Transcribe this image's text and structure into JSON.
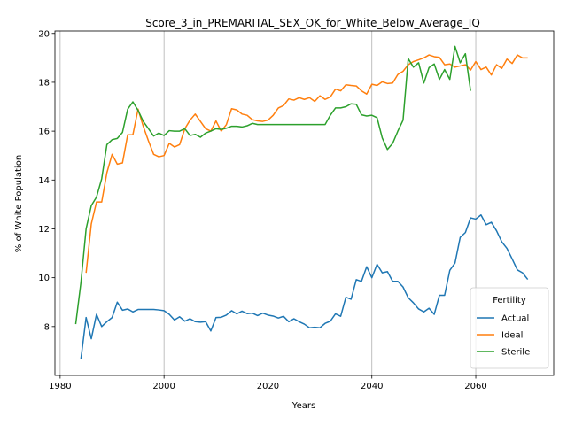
{
  "chart_data": {
    "type": "line",
    "title": "Score_3_in_PREMARITAL_SEX_OK_for_White_Below_Average_IQ",
    "xlabel": "Years",
    "ylabel": "% of White Population",
    "xlim": [
      1979,
      2075
    ],
    "ylim": [
      6.0,
      20.1
    ],
    "xticks": [
      1980,
      2000,
      2020,
      2040,
      2060
    ],
    "yticks": [
      8,
      10,
      12,
      14,
      16,
      18,
      20
    ],
    "grid": "vertical",
    "legend": {
      "title": "Fertility",
      "position": "lower-right"
    },
    "series": [
      {
        "name": "Actual",
        "color": "#1f77b4",
        "x": [
          1984,
          1985,
          1986,
          1987,
          1988,
          1989,
          1990,
          1991,
          1992,
          1993,
          1994,
          1995,
          1996,
          1997,
          1998,
          1999,
          2000,
          2001,
          2002,
          2003,
          2004,
          2005,
          2006,
          2007,
          2008,
          2009,
          2010,
          2011,
          2012,
          2013,
          2014,
          2015,
          2016,
          2017,
          2018,
          2019,
          2020,
          2021,
          2022,
          2023,
          2024,
          2025,
          2026,
          2027,
          2028,
          2029,
          2030,
          2031,
          2032,
          2033,
          2034,
          2035,
          2036,
          2037,
          2038,
          2039,
          2040,
          2041,
          2042,
          2043,
          2044,
          2045,
          2046,
          2047,
          2048,
          2049,
          2050,
          2051,
          2052,
          2053,
          2054,
          2055,
          2056,
          2057,
          2058,
          2059,
          2060,
          2061,
          2062,
          2063,
          2064,
          2065,
          2066,
          2067,
          2068,
          2069,
          2070
        ],
        "y": [
          6.67,
          8.37,
          7.5,
          8.5,
          8.0,
          8.2,
          8.37,
          9.0,
          8.67,
          8.72,
          8.6,
          8.7,
          8.7,
          8.7,
          8.7,
          8.68,
          8.65,
          8.5,
          8.27,
          8.4,
          8.22,
          8.32,
          8.2,
          8.18,
          8.2,
          7.82,
          8.37,
          8.38,
          8.47,
          8.65,
          8.52,
          8.63,
          8.53,
          8.55,
          8.45,
          8.55,
          8.47,
          8.43,
          8.35,
          8.42,
          8.2,
          8.32,
          8.2,
          8.1,
          7.95,
          7.97,
          7.95,
          8.13,
          8.22,
          8.52,
          8.42,
          9.2,
          9.12,
          9.92,
          9.85,
          10.45,
          10.0,
          10.55,
          10.2,
          10.25,
          9.85,
          9.85,
          9.62,
          9.18,
          8.97,
          8.72,
          8.6,
          8.75,
          8.5,
          9.28,
          9.28,
          10.3,
          10.6,
          11.65,
          11.85,
          12.45,
          12.4,
          12.57,
          12.17,
          12.27,
          11.92,
          11.47,
          11.2,
          10.77,
          10.32,
          10.2,
          9.93
        ]
      },
      {
        "name": "Ideal",
        "color": "#ff7f0e",
        "x": [
          1985,
          1986,
          1987,
          1988,
          1989,
          1990,
          1991,
          1992,
          1993,
          1994,
          1995,
          1996,
          1997,
          1998,
          1999,
          2000,
          2001,
          2002,
          2003,
          2004,
          2005,
          2006,
          2007,
          2008,
          2009,
          2010,
          2011,
          2012,
          2013,
          2014,
          2015,
          2016,
          2017,
          2018,
          2019,
          2020,
          2021,
          2022,
          2023,
          2024,
          2025,
          2026,
          2027,
          2028,
          2029,
          2030,
          2031,
          2032,
          2033,
          2034,
          2035,
          2036,
          2037,
          2038,
          2039,
          2040,
          2041,
          2042,
          2043,
          2044,
          2045,
          2046,
          2047,
          2048,
          2049,
          2050,
          2051,
          2052,
          2053,
          2054,
          2055,
          2056,
          2057,
          2058,
          2059,
          2060,
          2061,
          2062,
          2063,
          2064,
          2065,
          2066,
          2067,
          2068,
          2069,
          2070
        ],
        "y": [
          10.2,
          12.2,
          13.1,
          13.1,
          14.3,
          15.05,
          14.65,
          14.7,
          15.85,
          15.85,
          16.9,
          16.2,
          15.6,
          15.05,
          14.95,
          15.0,
          15.5,
          15.35,
          15.45,
          16.1,
          16.45,
          16.7,
          16.4,
          16.1,
          16.0,
          16.42,
          16.0,
          16.27,
          16.92,
          16.87,
          16.7,
          16.65,
          16.47,
          16.42,
          16.4,
          16.45,
          16.65,
          16.95,
          17.05,
          17.32,
          17.27,
          17.37,
          17.3,
          17.37,
          17.22,
          17.45,
          17.3,
          17.4,
          17.72,
          17.65,
          17.9,
          17.87,
          17.85,
          17.65,
          17.52,
          17.92,
          17.87,
          18.02,
          17.95,
          17.97,
          18.32,
          18.45,
          18.72,
          18.85,
          18.92,
          19.0,
          19.12,
          19.05,
          19.02,
          18.72,
          18.75,
          18.62,
          18.67,
          18.72,
          18.5,
          18.85,
          18.52,
          18.62,
          18.3,
          18.72,
          18.57,
          18.95,
          18.77,
          19.12,
          19.0,
          19.0
        ]
      },
      {
        "name": "Sterile",
        "color": "#2ca02c",
        "x": [
          1983,
          1984,
          1985,
          1986,
          1987,
          1988,
          1989,
          1990,
          1991,
          1992,
          1993,
          1994,
          1995,
          1996,
          1997,
          1998,
          1999,
          2000,
          2001,
          2002,
          2003,
          2004,
          2005,
          2006,
          2007,
          2008,
          2009,
          2010,
          2011,
          2012,
          2013,
          2014,
          2015,
          2016,
          2017,
          2018,
          2019,
          2020,
          2021,
          2022,
          2023,
          2024,
          2025,
          2026,
          2027,
          2028,
          2029,
          2030,
          2031,
          2032,
          2033,
          2034,
          2035,
          2036,
          2037,
          2038,
          2039,
          2040,
          2041,
          2042,
          2043,
          2044,
          2045,
          2046,
          2047,
          2048,
          2049,
          2050,
          2051,
          2052,
          2053,
          2054,
          2055,
          2056,
          2057,
          2058,
          2059
        ],
        "y": [
          8.1,
          9.8,
          12.0,
          12.95,
          13.3,
          14.05,
          15.45,
          15.65,
          15.7,
          15.95,
          16.9,
          17.2,
          16.85,
          16.4,
          16.1,
          15.8,
          15.92,
          15.82,
          16.02,
          16.0,
          16.0,
          16.1,
          15.82,
          15.87,
          15.75,
          15.92,
          16.0,
          16.1,
          16.07,
          16.12,
          16.2,
          16.2,
          16.17,
          16.22,
          16.32,
          16.27,
          16.27,
          16.27,
          16.27,
          16.27,
          16.27,
          16.27,
          16.27,
          16.27,
          16.27,
          16.27,
          16.27,
          16.27,
          16.27,
          16.65,
          16.95,
          16.95,
          17.0,
          17.12,
          17.1,
          16.67,
          16.62,
          16.65,
          16.55,
          15.72,
          15.25,
          15.5,
          16.0,
          16.45,
          18.97,
          18.62,
          18.8,
          17.97,
          18.6,
          18.75,
          18.12,
          18.52,
          18.12,
          19.47,
          18.8,
          19.17,
          17.65
        ]
      }
    ]
  }
}
